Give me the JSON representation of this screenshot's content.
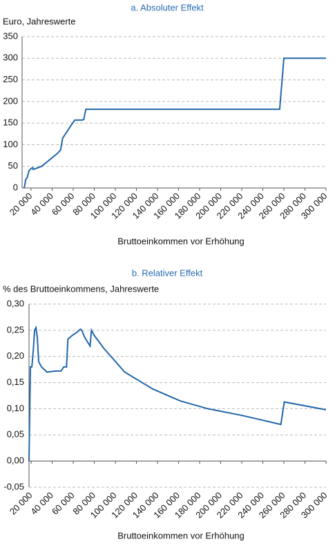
{
  "chart_data": [
    {
      "type": "line",
      "title": "a. Absoluter Effekt",
      "y_label": "Euro, Jahreswerte",
      "x_label": "Bruttoeinkommen vor Erhöhung",
      "color": "#2166a8",
      "grid": true,
      "x": [
        13500,
        15000,
        16500,
        18000,
        20000,
        21500,
        22000,
        24500,
        30000,
        35000,
        40000,
        45000,
        48000,
        50000,
        54000,
        58000,
        61500,
        68000,
        70000,
        72000,
        256000,
        260000,
        300000
      ],
      "values": [
        0,
        20,
        25,
        40,
        45,
        47,
        43,
        45,
        50,
        60,
        70,
        80,
        88,
        115,
        130,
        145,
        157,
        157,
        158,
        182,
        182,
        300,
        300
      ],
      "xlim": [
        11500,
        300000
      ],
      "xticks": [
        {
          "value": 20000,
          "label": "20 000"
        },
        {
          "value": 40000,
          "label": "40 000"
        },
        {
          "value": 60000,
          "label": "60 000"
        },
        {
          "value": 80000,
          "label": "80 000"
        },
        {
          "value": 100000,
          "label": "100 000"
        },
        {
          "value": 120000,
          "label": "120 000"
        },
        {
          "value": 140000,
          "label": "140 000"
        },
        {
          "value": 160000,
          "label": "160 000"
        },
        {
          "value": 180000,
          "label": "180 000"
        },
        {
          "value": 200000,
          "label": "200 000"
        },
        {
          "value": 220000,
          "label": "220 000"
        },
        {
          "value": 240000,
          "label": "240 000"
        },
        {
          "value": 260000,
          "label": "260 000"
        },
        {
          "value": 280000,
          "label": "280 000"
        },
        {
          "value": 300000,
          "label": "300 000"
        }
      ],
      "ylim": [
        0,
        350
      ],
      "yticks": [
        0,
        50,
        100,
        150,
        200,
        250,
        300,
        350
      ]
    },
    {
      "type": "line",
      "title": "b. Relativer Effekt",
      "y_label": "% des Bruttoeinkommens, Jahreswerte",
      "x_label": "Bruttoeinkommen vor Erhöhung",
      "color": "#2166a8",
      "grid": true,
      "x": [
        18000,
        19300,
        20700,
        22000,
        23300,
        24600,
        25900,
        27200,
        29900,
        35100,
        43100,
        48300,
        51000,
        53600,
        54900,
        58900,
        62800,
        66800,
        68100,
        70700,
        73400,
        76000,
        77300,
        80000,
        89200,
        108900,
        135300,
        161600,
        187900,
        220900,
        257100,
        260400,
        300000
      ],
      "values": [
        0,
        0.18,
        0.18,
        0.21,
        0.25,
        0.255,
        0.237,
        0.19,
        0.18,
        0.17,
        0.172,
        0.172,
        0.18,
        0.18,
        0.233,
        0.24,
        0.245,
        0.252,
        0.25,
        0.237,
        0.228,
        0.22,
        0.25,
        0.24,
        0.215,
        0.17,
        0.138,
        0.115,
        0.1,
        0.087,
        0.07,
        0.113,
        0.098
      ],
      "xlim": [
        18000,
        300000
      ],
      "xticks": [
        {
          "value": 20000,
          "label": "20 000"
        },
        {
          "value": 40000,
          "label": "40 000"
        },
        {
          "value": 60000,
          "label": "60 000"
        },
        {
          "value": 80000,
          "label": "80 000"
        },
        {
          "value": 100000,
          "label": "100 000"
        },
        {
          "value": 120000,
          "label": "120 000"
        },
        {
          "value": 140000,
          "label": "140 000"
        },
        {
          "value": 160000,
          "label": "160 000"
        },
        {
          "value": 180000,
          "label": "180 000"
        },
        {
          "value": 200000,
          "label": "200 000"
        },
        {
          "value": 220000,
          "label": "220 000"
        },
        {
          "value": 240000,
          "label": "240 000"
        },
        {
          "value": 260000,
          "label": "260 000"
        },
        {
          "value": 280000,
          "label": "280 000"
        },
        {
          "value": 300000,
          "label": "300 000"
        }
      ],
      "ylim": [
        -0.05,
        0.3
      ],
      "yticks": [
        {
          "value": -0.05,
          "label": "-0,05"
        },
        {
          "value": 0,
          "label": "0,00"
        },
        {
          "value": 0.05,
          "label": "0,05"
        },
        {
          "value": 0.1,
          "label": "0,10"
        },
        {
          "value": 0.15,
          "label": "0,15"
        },
        {
          "value": 0.2,
          "label": "0,20"
        },
        {
          "value": 0.25,
          "label": "0,25"
        },
        {
          "value": 0.3,
          "label": "0,30"
        }
      ]
    }
  ]
}
